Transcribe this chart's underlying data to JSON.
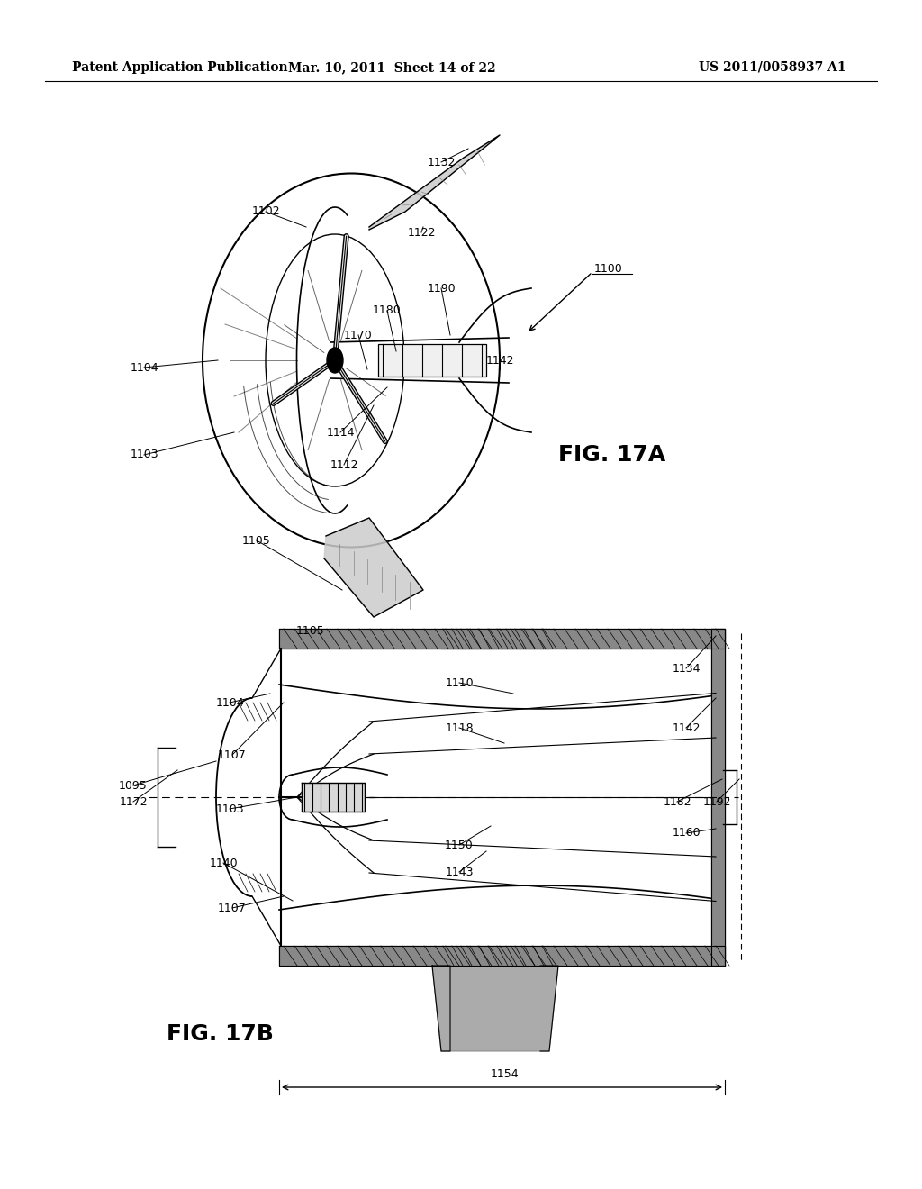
{
  "bg_color": "#ffffff",
  "header_left": "Patent Application Publication",
  "header_mid": "Mar. 10, 2011  Sheet 14 of 22",
  "header_right": "US 2011/0058937 A1",
  "fig17a_label": "FIG. 17A",
  "fig17b_label": "FIG. 17B"
}
